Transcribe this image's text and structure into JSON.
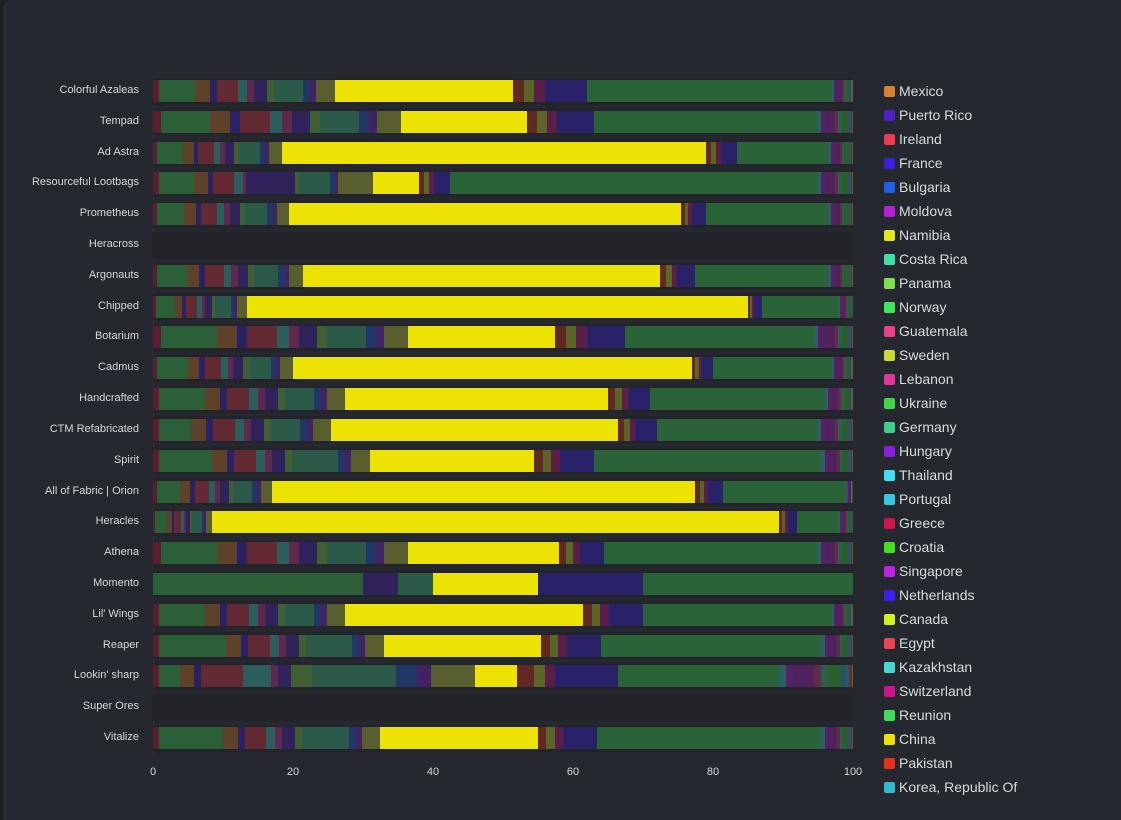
{
  "chart_data": {
    "type": "bar",
    "orientation": "horizontal",
    "stacked": true,
    "highlighted_series": "China",
    "xlim": [
      0,
      100
    ],
    "x_ticks": [
      "0",
      "20",
      "40",
      "60",
      "80",
      "100"
    ],
    "legend_position": "right",
    "series": [
      {
        "name": "Mexico",
        "color": "#d9822b"
      },
      {
        "name": "Puerto Rico",
        "color": "#4e22c9"
      },
      {
        "name": "Ireland",
        "color": "#f0384f"
      },
      {
        "name": "France",
        "color": "#3b1fe0"
      },
      {
        "name": "Bulgaria",
        "color": "#1f5fe8"
      },
      {
        "name": "Moldova",
        "color": "#b61fd4"
      },
      {
        "name": "Namibia",
        "color": "#e3e81a"
      },
      {
        "name": "Costa Rica",
        "color": "#3fe0a6"
      },
      {
        "name": "Panama",
        "color": "#7fe04a"
      },
      {
        "name": "Norway",
        "color": "#3de85a"
      },
      {
        "name": "Guatemala",
        "color": "#ec3f8a"
      },
      {
        "name": "Sweden",
        "color": "#c9d93a"
      },
      {
        "name": "Lebanon",
        "color": "#e0359b"
      },
      {
        "name": "Ukraine",
        "color": "#3ed64a"
      },
      {
        "name": "Germany",
        "color": "#3fcf8c"
      },
      {
        "name": "Hungary",
        "color": "#8a1fe0"
      },
      {
        "name": "Thailand",
        "color": "#3fe0f0"
      },
      {
        "name": "Portugal",
        "color": "#38c6e0"
      },
      {
        "name": "Greece",
        "color": "#d1134f"
      },
      {
        "name": "Croatia",
        "color": "#3fe01f"
      },
      {
        "name": "Singapore",
        "color": "#c21fe8"
      },
      {
        "name": "Netherlands",
        "color": "#3b1ff0"
      },
      {
        "name": "Canada",
        "color": "#d4f01f"
      },
      {
        "name": "Egypt",
        "color": "#ec4454"
      },
      {
        "name": "Kazakhstan",
        "color": "#44d9cf"
      },
      {
        "name": "Switzerland",
        "color": "#d11390"
      },
      {
        "name": "Reunion",
        "color": "#3ddc5a"
      },
      {
        "name": "China",
        "color": "#ece304"
      },
      {
        "name": "Pakistan",
        "color": "#e8321c"
      },
      {
        "name": "Korea, Republic Of",
        "color": "#32b8cf"
      }
    ],
    "stack_order": [
      "Greece",
      "Reunion",
      "Mexico",
      "France",
      "Ireland",
      "Kazakhstan",
      "Lebanon",
      "Puerto Rico",
      "Panama",
      "Germany",
      "Bulgaria",
      "Hungary",
      "Sweden",
      "China",
      "Pakistan",
      "Canada",
      "Switzerland",
      "Netherlands",
      "Norway",
      "Thailand",
      "Singapore",
      "Moldova",
      "Guatemala",
      "Costa Rica",
      "Croatia",
      "Ukraine",
      "Korea, Republic Of",
      "Portugal",
      "Egypt",
      "Namibia"
    ],
    "categories": [
      {
        "label": "Colorful Azaleas",
        "values": [
          0.8,
          5.2,
          2.1,
          1.0,
          3.1,
          1.3,
          1.0,
          1.8,
          1.0,
          4.2,
          1.0,
          0.8,
          2.7,
          25.5,
          1.5,
          1.5,
          1.5,
          6.0,
          35,
          0.3,
          0.3,
          0.8,
          0.3,
          0.3,
          0.3,
          0.2,
          0.2,
          0.1,
          0.1,
          0.1
        ]
      },
      {
        "label": "Tempad",
        "values": [
          1.1,
          7.1,
          2.8,
          1.4,
          4.3,
          1.8,
          1.4,
          2.5,
          1.4,
          5.7,
          1.4,
          1.1,
          3.5,
          18,
          1.4,
          1.4,
          1.4,
          5.3,
          32,
          0.5,
          0.5,
          1.4,
          0.5,
          0.5,
          0.5,
          0.3,
          0.3,
          0.2,
          0.2,
          0.1
        ]
      },
      {
        "label": "Ad Astra",
        "values": [
          0.6,
          3.7,
          1.5,
          0.7,
          2.2,
          0.9,
          0.7,
          1.3,
          0.7,
          3.0,
          0.7,
          0.6,
          1.9,
          60.5,
          0.7,
          0.7,
          0.7,
          2.4,
          13,
          0.4,
          0.4,
          0.9,
          0.3,
          0.3,
          0.3,
          0.3,
          0.2,
          0.2,
          0.1,
          0.1
        ]
      },
      {
        "label": "Resourceful Lootbags",
        "values": [
          0.8,
          5.0,
          2.0,
          0.8,
          3.0,
          1.2,
          0.5,
          7.0,
          0.5,
          4.5,
          0.7,
          0.5,
          5.0,
          6.5,
          0.7,
          0.7,
          0.7,
          2.4,
          52.5,
          0.5,
          0.5,
          1.4,
          0.5,
          0.5,
          0.5,
          0.3,
          0.3,
          0.2,
          0.2,
          0.1
        ]
      },
      {
        "label": "Prometheus",
        "values": [
          0.6,
          3.9,
          1.6,
          0.8,
          2.3,
          1.0,
          0.8,
          1.4,
          0.8,
          3.1,
          0.8,
          0.6,
          1.8,
          56,
          0.5,
          0.5,
          0.5,
          2.0,
          17.5,
          0.4,
          0.4,
          0.9,
          0.3,
          0.3,
          0.3,
          0.3,
          0.2,
          0.2,
          0.1,
          0.1
        ]
      },
      {
        "label": "Heracross",
        "values": [
          0,
          0,
          0,
          0,
          0,
          0,
          0,
          0,
          0,
          0,
          0,
          0,
          0,
          0,
          0,
          0,
          0,
          0,
          0,
          0,
          0,
          0,
          0,
          0,
          0,
          0,
          0,
          0,
          0,
          0
        ]
      },
      {
        "label": "Argonauts",
        "values": [
          0.6,
          4.3,
          1.7,
          0.9,
          2.6,
          1.1,
          0.9,
          1.5,
          0.9,
          3.4,
          0.9,
          0.6,
          2.1,
          51,
          0.8,
          0.8,
          0.8,
          2.6,
          19,
          0.4,
          0.4,
          0.9,
          0.3,
          0.3,
          0.3,
          0.3,
          0.2,
          0.2,
          0.1,
          0.1
        ]
      },
      {
        "label": "Chipped",
        "values": [
          0.4,
          2.7,
          1.1,
          0.5,
          1.6,
          0.7,
          0.5,
          0.9,
          0.5,
          2.2,
          0.5,
          0.4,
          1.5,
          71.5,
          0.3,
          0.3,
          0.3,
          1.1,
          11,
          0.2,
          0.2,
          0.5,
          0.2,
          0.2,
          0.2,
          0.2,
          0.2,
          0.1,
          0,
          0
        ]
      },
      {
        "label": "Botarium",
        "values": [
          1.1,
          8.1,
          2.8,
          1.4,
          4.3,
          1.8,
          1.4,
          2.5,
          1.4,
          5.7,
          1.4,
          1.1,
          3.5,
          21,
          1.5,
          1.5,
          1.5,
          5.5,
          27,
          0.5,
          0.5,
          1.9,
          0.5,
          0.5,
          0.5,
          0.3,
          0.3,
          0.2,
          0.2,
          0.1
        ]
      },
      {
        "label": "Cadmus",
        "values": [
          0.6,
          4.4,
          1.6,
          0.8,
          2.3,
          1.0,
          0.8,
          1.4,
          0.8,
          3.1,
          0.8,
          0.6,
          1.8,
          57,
          0.5,
          0.5,
          0.5,
          1.5,
          17,
          0.3,
          0.3,
          0.8,
          0.3,
          0.3,
          0.3,
          0.2,
          0.2,
          0.1,
          0.1,
          0.1
        ]
      },
      {
        "label": "Handcrafted",
        "values": [
          0.8,
          6.7,
          2.1,
          1.0,
          3.1,
          1.3,
          1.0,
          1.8,
          1.0,
          4.2,
          1.0,
          0.8,
          2.7,
          37.5,
          1.0,
          1.0,
          1.0,
          3.0,
          25,
          0.4,
          0.4,
          1.1,
          0.4,
          0.4,
          0.4,
          0.3,
          0.3,
          0.1,
          0.1,
          0.1
        ]
      },
      {
        "label": "CTM Refabricated",
        "values": [
          0.8,
          4.7,
          2.1,
          1.0,
          3.1,
          1.3,
          1.0,
          1.8,
          1.0,
          4.2,
          1.0,
          0.8,
          2.7,
          41,
          0.8,
          0.8,
          0.8,
          3.1,
          23,
          0.5,
          0.5,
          1.4,
          0.5,
          0.5,
          0.5,
          0.3,
          0.3,
          0.2,
          0.2,
          0.1
        ]
      },
      {
        "label": "Spirit",
        "values": [
          0.8,
          7.7,
          2.1,
          1.0,
          3.1,
          1.3,
          1.0,
          1.8,
          1.0,
          6.7,
          1.0,
          0.8,
          2.7,
          23.5,
          1.2,
          1.2,
          1.2,
          4.9,
          32.5,
          0.5,
          0.5,
          1.2,
          0.4,
          0.4,
          0.4,
          0.3,
          0.3,
          0.2,
          0.2,
          0.1
        ]
      },
      {
        "label": "All of Fabric | Orion",
        "values": [
          0.5,
          3.4,
          1.4,
          0.7,
          2.0,
          0.9,
          0.7,
          1.2,
          0.7,
          2.7,
          0.7,
          0.5,
          1.6,
          60.5,
          0.6,
          0.6,
          0.6,
          2.2,
          17.5,
          0.1,
          0.1,
          0.5,
          0.1,
          0.1,
          0.1,
          0,
          0,
          0,
          0,
          0
        ]
      },
      {
        "label": "Heracles",
        "values": [
          0.3,
          1.7,
          0.7,
          0.3,
          1.0,
          0.4,
          0.3,
          0.6,
          0.3,
          1.4,
          0.3,
          0.3,
          0.9,
          81,
          0.4,
          0.4,
          0.4,
          1.3,
          6,
          0.2,
          0.2,
          0.5,
          0.2,
          0.2,
          0.2,
          0.2,
          0.2,
          0.1,
          0,
          0
        ]
      },
      {
        "label": "Athena",
        "values": [
          1.1,
          8.1,
          2.8,
          1.4,
          4.3,
          1.8,
          1.4,
          2.5,
          1.4,
          5.7,
          1.4,
          1.1,
          3.5,
          21.5,
          1.0,
          1.0,
          1.0,
          3.5,
          30.5,
          0.5,
          0.5,
          1.4,
          0.5,
          0.5,
          0.5,
          0.3,
          0.3,
          0.2,
          0.2,
          0.1
        ]
      },
      {
        "label": "Momento",
        "values": [
          0,
          30,
          0,
          0,
          0,
          0,
          0,
          5,
          0,
          5,
          0,
          0,
          0,
          15,
          0,
          0,
          0,
          15,
          30,
          0,
          0,
          0,
          0,
          0,
          0,
          0,
          0,
          0,
          0,
          0
        ]
      },
      {
        "label": "Lil' Wings",
        "values": [
          0.8,
          6.7,
          2.1,
          1.0,
          3.1,
          1.3,
          1.0,
          1.8,
          1.0,
          4.2,
          1.0,
          0.8,
          2.7,
          34,
          1.2,
          1.2,
          1.2,
          4.9,
          27,
          0.3,
          0.3,
          0.8,
          0.3,
          0.3,
          0.3,
          0.2,
          0.2,
          0.1,
          0.1,
          0.1
        ]
      },
      {
        "label": "Reaper",
        "values": [
          0.8,
          9.7,
          2.1,
          1.0,
          3.1,
          1.3,
          1.0,
          1.8,
          1.0,
          6.7,
          1.0,
          0.8,
          2.7,
          22.5,
          1.2,
          1.2,
          1.2,
          4.9,
          31.5,
          0.5,
          0.5,
          1.2,
          0.4,
          0.4,
          0.4,
          0.3,
          0.3,
          0.2,
          0.2,
          0.1
        ]
      },
      {
        "label": "Lookin' sharp",
        "values": [
          0.8,
          3.0,
          2.1,
          1.0,
          6.0,
          4.0,
          1.0,
          1.8,
          3.0,
          12.0,
          3.0,
          2.0,
          6.3,
          6,
          2.5,
          1.5,
          1.5,
          9.0,
          23,
          1.0,
          1.0,
          3.0,
          1.0,
          1.0,
          1.0,
          0.8,
          0.7,
          0.5,
          0.3,
          0.2
        ]
      },
      {
        "label": "Super Ores",
        "values": [
          0,
          0,
          0,
          0,
          0,
          0,
          0,
          0,
          0,
          0,
          0,
          0,
          0,
          0,
          0,
          0,
          0,
          0,
          0,
          0,
          0,
          0,
          0,
          0,
          0,
          0,
          0,
          0,
          0,
          0
        ]
      },
      {
        "label": "Vitalize",
        "values": [
          0.8,
          9.2,
          2.1,
          1.0,
          3.1,
          1.3,
          1.0,
          1.8,
          1.0,
          6.7,
          1.0,
          0.8,
          2.7,
          22.5,
          1.2,
          1.2,
          1.2,
          4.9,
          32,
          0.5,
          0.5,
          1.2,
          0.4,
          0.4,
          0.4,
          0.3,
          0.3,
          0.2,
          0.2,
          0.1
        ]
      }
    ]
  }
}
